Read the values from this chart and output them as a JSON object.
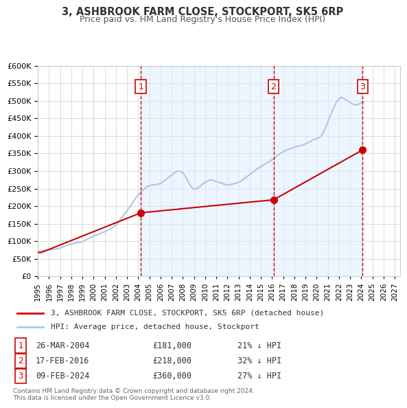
{
  "title": "3, ASHBROOK FARM CLOSE, STOCKPORT, SK5 6RP",
  "subtitle": "Price paid vs. HM Land Registry's House Price Index (HPI)",
  "background_color": "#ffffff",
  "plot_bg_color": "#ffffff",
  "grid_color": "#cccccc",
  "ylim": [
    0,
    600000
  ],
  "yticks": [
    0,
    50000,
    100000,
    150000,
    200000,
    250000,
    300000,
    350000,
    400000,
    450000,
    500000,
    550000,
    600000
  ],
  "xlim_start": 1995.0,
  "xlim_end": 2027.5,
  "xticks": [
    1995,
    1996,
    1997,
    1998,
    1999,
    2000,
    2001,
    2002,
    2003,
    2004,
    2005,
    2006,
    2007,
    2008,
    2009,
    2010,
    2011,
    2012,
    2013,
    2014,
    2015,
    2016,
    2017,
    2018,
    2019,
    2020,
    2021,
    2022,
    2023,
    2024,
    2025,
    2026,
    2027
  ],
  "hpi_color": "#aec6e8",
  "price_color": "#cc0000",
  "sale_marker_color": "#cc0000",
  "vline_color": "#cc0000",
  "vline_alpha": 0.7,
  "sale_label_bg": "#ffffff",
  "sale_label_border": "#cc0000",
  "hpi_data": {
    "years": [
      1995.0,
      1995.25,
      1995.5,
      1995.75,
      1996.0,
      1996.25,
      1996.5,
      1996.75,
      1997.0,
      1997.25,
      1997.5,
      1997.75,
      1998.0,
      1998.25,
      1998.5,
      1998.75,
      1999.0,
      1999.25,
      1999.5,
      1999.75,
      2000.0,
      2000.25,
      2000.5,
      2000.75,
      2001.0,
      2001.25,
      2001.5,
      2001.75,
      2002.0,
      2002.25,
      2002.5,
      2002.75,
      2003.0,
      2003.25,
      2003.5,
      2003.75,
      2004.0,
      2004.25,
      2004.5,
      2004.75,
      2005.0,
      2005.25,
      2005.5,
      2005.75,
      2006.0,
      2006.25,
      2006.5,
      2006.75,
      2007.0,
      2007.25,
      2007.5,
      2007.75,
      2008.0,
      2008.25,
      2008.5,
      2008.75,
      2009.0,
      2009.25,
      2009.5,
      2009.75,
      2010.0,
      2010.25,
      2010.5,
      2010.75,
      2011.0,
      2011.25,
      2011.5,
      2011.75,
      2012.0,
      2012.25,
      2012.5,
      2012.75,
      2013.0,
      2013.25,
      2013.5,
      2013.75,
      2014.0,
      2014.25,
      2014.5,
      2014.75,
      2015.0,
      2015.25,
      2015.5,
      2015.75,
      2016.0,
      2016.25,
      2016.5,
      2016.75,
      2017.0,
      2017.25,
      2017.5,
      2017.75,
      2018.0,
      2018.25,
      2018.5,
      2018.75,
      2019.0,
      2019.25,
      2019.5,
      2019.75,
      2020.0,
      2020.25,
      2020.5,
      2020.75,
      2021.0,
      2021.25,
      2021.5,
      2021.75,
      2022.0,
      2022.25,
      2022.5,
      2022.75,
      2023.0,
      2023.25,
      2023.5,
      2023.75,
      2024.0,
      2024.25
    ],
    "values": [
      72000,
      72500,
      73000,
      74000,
      75000,
      76000,
      77500,
      79000,
      81000,
      84000,
      87000,
      90000,
      92000,
      94000,
      96000,
      97000,
      99000,
      103000,
      107000,
      111000,
      115000,
      118000,
      121000,
      124000,
      127000,
      131000,
      135000,
      140000,
      147000,
      156000,
      166000,
      177000,
      187000,
      198000,
      210000,
      222000,
      232000,
      240000,
      248000,
      255000,
      258000,
      260000,
      261000,
      262000,
      265000,
      270000,
      276000,
      282000,
      288000,
      295000,
      300000,
      299000,
      295000,
      283000,
      268000,
      255000,
      248000,
      250000,
      255000,
      262000,
      268000,
      272000,
      275000,
      273000,
      270000,
      268000,
      265000,
      262000,
      260000,
      261000,
      263000,
      265000,
      268000,
      272000,
      278000,
      284000,
      290000,
      296000,
      302000,
      308000,
      313000,
      318000,
      322000,
      327000,
      332000,
      338000,
      344000,
      350000,
      355000,
      359000,
      362000,
      365000,
      367000,
      370000,
      372000,
      374000,
      377000,
      381000,
      385000,
      390000,
      392000,
      396000,
      404000,
      420000,
      440000,
      460000,
      478000,
      495000,
      505000,
      510000,
      505000,
      500000,
      495000,
      490000,
      488000,
      490000,
      495000,
      498000
    ]
  },
  "price_data": {
    "years": [
      1995.0,
      1995.3,
      2004.23,
      2016.13,
      2024.12
    ],
    "values": [
      68000,
      68000,
      181000,
      218000,
      360000
    ]
  },
  "sales": [
    {
      "num": 1,
      "year": 2004.23,
      "value": 181000,
      "date": "26-MAR-2004",
      "price": "£181,000",
      "pct": "21%",
      "dir": "↓"
    },
    {
      "num": 2,
      "year": 2016.13,
      "value": 218000,
      "date": "17-FEB-2016",
      "price": "£218,000",
      "pct": "32%",
      "dir": "↓"
    },
    {
      "num": 3,
      "year": 2024.12,
      "value": 360000,
      "date": "09-FEB-2024",
      "price": "£360,000",
      "pct": "27%",
      "dir": "↓"
    }
  ],
  "legend_line1": "3, ASHBROOK FARM CLOSE, STOCKPORT, SK5 6RP (detached house)",
  "legend_line2": "HPI: Average price, detached house, Stockport",
  "footnote": "Contains HM Land Registry data © Crown copyright and database right 2024.\nThis data is licensed under the Open Government Licence v3.0.",
  "shaded_regions": [
    {
      "x_start": 2004.23,
      "x_end": 2016.13
    },
    {
      "x_start": 2016.13,
      "x_end": 2024.12
    }
  ]
}
